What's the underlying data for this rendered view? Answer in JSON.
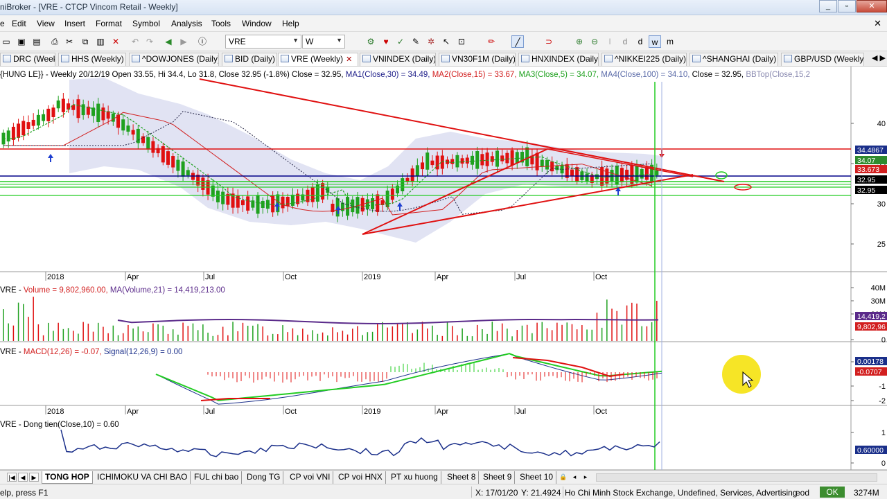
{
  "window": {
    "title": "niBroker - [VRE - CTCP Vincom Retail - Weekly]",
    "min": "_",
    "max": "▫",
    "close": "✕"
  },
  "menu": {
    "items": [
      "File",
      "Edit",
      "View",
      "Insert",
      "Format",
      "Symbol",
      "Analysis",
      "Tools",
      "Window",
      "Help"
    ],
    "first_visible": "e",
    "close_glyph": "✕"
  },
  "toolbar": {
    "symbol_value": "VRE",
    "period_value": "W"
  },
  "chart_tabs": [
    {
      "label": "DRC (Weekly)",
      "active": false
    },
    {
      "label": "HHS (Weekly)",
      "active": false
    },
    {
      "label": "^DOWJONES (Daily)",
      "active": false
    },
    {
      "label": "BID (Daily)",
      "active": false
    },
    {
      "label": "VRE (Weekly)",
      "active": true
    },
    {
      "label": "VNINDEX (Daily)",
      "active": false
    },
    {
      "label": "VN30F1M (Daily)",
      "active": false
    },
    {
      "label": "HNXINDEX (Daily)",
      "active": false
    },
    {
      "label": "^NIKKEI225 (Daily)",
      "active": false
    },
    {
      "label": "^SHANGHAI (Daily)",
      "active": false
    },
    {
      "label": "GBP/USD (Weekly)",
      "active": false
    }
  ],
  "price_pane": {
    "header_parts": [
      {
        "text": "{HUNG LE}} - Weekly 20/12/19 Open 33.55, Hi 34.4, Lo 31.8, Close 32.95 (-1.8%) Close = 32.95, ",
        "color": "#000000"
      },
      {
        "text": "MA1(Close,30) = 34.49, ",
        "color": "#20208a"
      },
      {
        "text": "MA2(Close,15) = 33.67, ",
        "color": "#d21f1f"
      },
      {
        "text": "MA3(Close,5) = 34.07, ",
        "color": "#1fa11f"
      },
      {
        "text": "MA4(Close,100) = 34.10, ",
        "color": "#5a6aa8"
      },
      {
        "text": "Close = 32.95, ",
        "color": "#000000"
      },
      {
        "text": "BBTop(Close,15,2",
        "color": "#8a8ab0"
      }
    ],
    "y_ticks": [
      "40",
      "35",
      "30",
      "25"
    ],
    "value_badges": [
      {
        "text": "34.4867",
        "bg": "#1a2f8a",
        "fg": "#ffffff"
      },
      {
        "text": "34.07",
        "bg": "#2e8b2e",
        "fg": "#ffffff"
      },
      {
        "text": "33.673",
        "bg": "#d21f1f",
        "fg": "#ffffff"
      },
      {
        "text": "32.95",
        "bg": "#000000",
        "fg": "#ffffff"
      },
      {
        "text": "32.95",
        "bg": "#000000",
        "fg": "#ffffff"
      }
    ]
  },
  "x_axis_labels": [
    "2018",
    "Apr",
    "Jul",
    "Oct",
    "2019",
    "Apr",
    "Jul",
    "Oct"
  ],
  "volume_pane": {
    "header_parts": [
      {
        "text": "VRE - ",
        "color": "#000000"
      },
      {
        "text": "Volume = 9,802,960.00, ",
        "color": "#d21f1f"
      },
      {
        "text": "MA(Volume,21) = 14,419,213.00",
        "color": "#5a2a8a"
      }
    ],
    "y_ticks": [
      "40M",
      "30M",
      "20M",
      "0"
    ],
    "value_badges": [
      {
        "text": "14,419,2",
        "bg": "#5a2a8a",
        "fg": "#ffffff"
      },
      {
        "text": "9,802,96",
        "bg": "#d21f1f",
        "fg": "#ffffff"
      }
    ]
  },
  "macd_pane": {
    "header_parts": [
      {
        "text": "VRE - ",
        "color": "#000000"
      },
      {
        "text": "MACD(12,26) = -0.07, ",
        "color": "#d21f1f"
      },
      {
        "text": "Signal(12,26,9) = 0.00",
        "color": "#1a2f8a"
      }
    ],
    "y_ticks": [
      "1",
      "-1",
      "-2"
    ],
    "value_badges": [
      {
        "text": "0.00178",
        "bg": "#1a2f8a",
        "fg": "#ffffff"
      },
      {
        "text": "-0.0707",
        "bg": "#d21f1f",
        "fg": "#ffffff"
      }
    ]
  },
  "dongtien_pane": {
    "header_parts": [
      {
        "text": "VRE - Dong tien(Close,10) = 0.60",
        "color": "#000000"
      }
    ],
    "y_ticks": [
      "1",
      "0"
    ],
    "value_badges": [
      {
        "text": "0.60000",
        "bg": "#1a2f8a",
        "fg": "#ffffff"
      }
    ]
  },
  "sheet_tabs": [
    "TONG HOP",
    "ICHIMOKU VA CHI BAO",
    "FUL chi bao",
    "Dong TG",
    "CP voi VNI",
    "CP voi HNX",
    "PT xu huong",
    "Sheet 8",
    "Sheet 9",
    "Sheet 10"
  ],
  "status": {
    "help": "elp, press F1",
    "x": "X: 17/01/20",
    "y": "Y: 21.4924",
    "exchange": "Ho Chi Minh Stock Exchange, Undefined, Services, Advertising",
    "eod": "eod",
    "ok": "OK",
    "memory": "3274M"
  }
}
